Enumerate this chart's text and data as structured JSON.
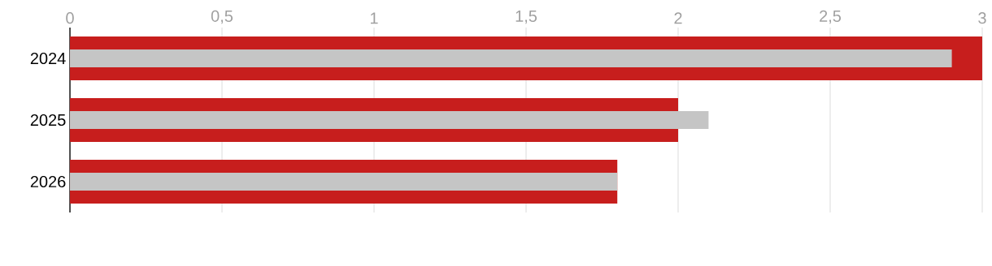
{
  "chart_data": {
    "type": "bar",
    "orientation": "horizontal",
    "categories": [
      "2024",
      "2025",
      "2026"
    ],
    "series": [
      {
        "color": "#c71e1d",
        "values": [
          3.0,
          2.0,
          1.8
        ]
      },
      {
        "color": "#c5c5c5",
        "values": [
          2.9,
          2.1,
          1.8
        ]
      }
    ],
    "xlim": [
      0,
      3
    ],
    "xticks": [
      0,
      {
        "value": 0.5,
        "label": "0,5"
      },
      1,
      {
        "value": 1.5,
        "label": "1,5"
      },
      2,
      {
        "value": 2.5,
        "label": "2,5"
      },
      3
    ],
    "grid": "x"
  }
}
